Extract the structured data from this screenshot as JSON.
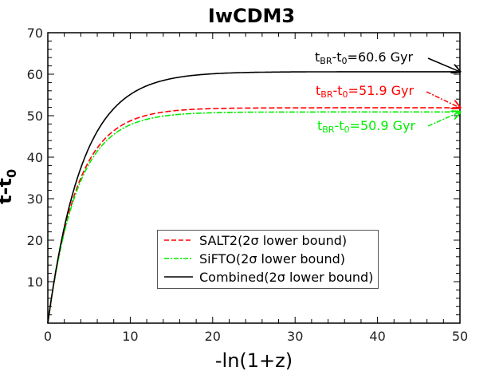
{
  "chart_data": {
    "type": "line",
    "title": "IwCDM3",
    "xlabel": "-ln(1+z)",
    "ylabel": "t-t0",
    "xlim": [
      0,
      50
    ],
    "ylim": [
      0,
      70
    ],
    "xticks": [
      0,
      10,
      20,
      30,
      40,
      50
    ],
    "yticks": [
      10,
      20,
      30,
      40,
      50,
      60,
      70
    ],
    "grid": false,
    "legend_position": "lower center",
    "x": [
      0,
      1,
      2,
      3,
      4,
      5,
      6,
      8,
      10,
      12,
      15,
      20,
      25,
      30,
      35,
      40,
      45,
      50
    ],
    "series": [
      {
        "name": "SALT2(2σ lower bound)",
        "color": "#ff0000",
        "style": "dashed",
        "asymptote": 51.9,
        "rate": 0.28,
        "values": [
          0,
          12.7,
          22.3,
          29.6,
          35.2,
          39.4,
          42.6,
          46.7,
          49.0,
          50.3,
          51.2,
          51.7,
          51.9,
          51.9,
          51.9,
          51.9,
          51.9,
          51.9
        ]
      },
      {
        "name": "SiFTO(2σ lower bound)",
        "color": "#00ee00",
        "style": "dashdot",
        "asymptote": 50.9,
        "rate": 0.28,
        "values": [
          0,
          12.4,
          21.9,
          29.0,
          34.5,
          38.6,
          41.8,
          45.8,
          48.0,
          49.3,
          50.2,
          50.7,
          50.9,
          50.9,
          50.9,
          50.9,
          50.9,
          50.9
        ]
      },
      {
        "name": "Combined(2σ lower bound)",
        "color": "#000000",
        "style": "solid",
        "asymptote": 60.6,
        "rate": 0.24,
        "values": [
          0,
          12.9,
          23.1,
          31.1,
          37.4,
          42.4,
          46.3,
          51.8,
          55.1,
          57.3,
          59.0,
          60.1,
          60.5,
          60.6,
          60.6,
          60.6,
          60.6,
          60.6
        ]
      }
    ],
    "annotations": [
      {
        "text": "tBR-t0=60.6 Gyr",
        "color": "#000000",
        "value": 60.6
      },
      {
        "text": "tBR-t0=51.9 Gyr",
        "color": "#ff0000",
        "value": 51.9
      },
      {
        "text": "tBR-t0=50.9 Gyr",
        "color": "#00ee00",
        "value": 50.9
      }
    ]
  },
  "labels": {
    "title": "IwCDM3",
    "xlabel": "-ln(1+z)",
    "ylabel_main": "t-t",
    "ylabel_sub": "0",
    "legend": [
      "SALT2(2σ lower bound)",
      "SiFTO(2σ lower bound)",
      "Combined(2σ lower bound)"
    ],
    "ann_prefix": "t",
    "ann_sub1": "BR",
    "ann_mid": "-t",
    "ann_sub2": "0",
    "ann_black_value": "=60.6 Gyr",
    "ann_red_value": "=51.9 Gyr",
    "ann_green_value": "=50.9 Gyr"
  }
}
